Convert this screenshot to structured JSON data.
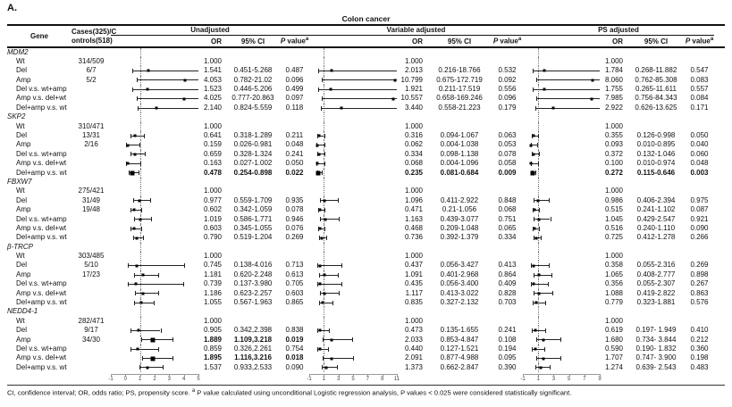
{
  "figure_label": "A.",
  "header": {
    "title": "Colon cancer",
    "gene": "Gene",
    "cases_line1": "Cases(325)/C",
    "cases_line2": "ontrols(518)",
    "or": "OR",
    "ci": "95% CI",
    "p_italic": "P",
    "p_rest": " value",
    "p_sup": "a"
  },
  "footnote": {
    "part1": "CI, confidence interval; OR, odds ratio; PS, propensity score. ",
    "sup": "a",
    "part2": " P value calculated using unconditional Logistic regression analysis, P values < 0.025 were considered statistically significant."
  },
  "chart_data": {
    "type": "forest",
    "title": "Colon cancer",
    "reference_value": 1,
    "models": [
      {
        "name": "Unadjusted",
        "axis_min": -1,
        "axis_max": 5,
        "ticks": [
          -1,
          0,
          1,
          2,
          3,
          4,
          5
        ]
      },
      {
        "name": "Variable adjusted",
        "axis_min": -1,
        "axis_max": 11,
        "ticks": [
          -1,
          1,
          3,
          5,
          7,
          9,
          11
        ]
      },
      {
        "name": "PS adjusted",
        "axis_min": -1,
        "axis_max": 9,
        "ticks": [
          -1,
          1,
          3,
          5,
          7,
          9
        ]
      }
    ],
    "genes": [
      {
        "name": "MDM2",
        "rows": [
          {
            "label": "Wt",
            "cases": "314/509",
            "cells": [
              {
                "or": "1.000"
              },
              {
                "or": "1.000"
              },
              {
                "or": "1.000"
              }
            ]
          },
          {
            "label": "Del",
            "cases": "6/7",
            "cells": [
              {
                "or": "1.541",
                "ci": "0.451-5.268",
                "p": "0.487"
              },
              {
                "or": "2.013",
                "ci": "0.216-18.766",
                "p": "0.532"
              },
              {
                "or": "1.784",
                "ci": "0.268-11.882",
                "p": "0.547"
              }
            ]
          },
          {
            "label": "Amp",
            "cases": "5/2",
            "cells": [
              {
                "or": "4.053",
                "ci": "0.782-21.02",
                "p": "0.096"
              },
              {
                "or": "10.799",
                "ci": "0.675-172.719",
                "p": "0.092"
              },
              {
                "or": "8.060",
                "ci": "0.762-85.308",
                "p": "0.083"
              }
            ]
          },
          {
            "label": "Del v.s. wt+amp",
            "cells": [
              {
                "or": "1.523",
                "ci": "0.446-5.206",
                "p": "0.499"
              },
              {
                "or": "1.921",
                "ci": "0.211-17.519",
                "p": "0.556"
              },
              {
                "or": "1.755",
                "ci": "0.265-11.611",
                "p": "0.557"
              }
            ]
          },
          {
            "label": "Amp v.s. del+wt",
            "cells": [
              {
                "or": "4.025",
                "ci": "0.777-20.863",
                "p": "0.097"
              },
              {
                "or": "10.557",
                "ci": "0.658-169.246",
                "p": "0.096"
              },
              {
                "or": "7.985",
                "ci": "0.756-84.343",
                "p": "0.084"
              }
            ]
          },
          {
            "label": "Del+amp v.s. wt",
            "cells": [
              {
                "or": "2.140",
                "ci": "0.824-5.559",
                "p": "0.118"
              },
              {
                "or": "3.440",
                "ci": "0.558-21.223",
                "p": "0.179"
              },
              {
                "or": "2.922",
                "ci": "0.626-13.625",
                "p": "0.171"
              }
            ]
          }
        ]
      },
      {
        "name": "SKP2",
        "rows": [
          {
            "label": "Wt",
            "cases": "310/471",
            "cells": [
              {
                "or": "1.000"
              },
              {
                "or": "1.000"
              },
              {
                "or": "1.000"
              }
            ]
          },
          {
            "label": "Del",
            "cases": "13/31",
            "cells": [
              {
                "or": "0.641",
                "ci": "0.318-1.289",
                "p": "0.211"
              },
              {
                "or": "0.316",
                "ci": "0.094-1.067",
                "p": "0.063"
              },
              {
                "or": "0.355",
                "ci": "0.126-0.998",
                "p": "0.050"
              }
            ]
          },
          {
            "label": "Amp",
            "cases": "2/16",
            "cells": [
              {
                "or": "0.159",
                "ci": "0.026-0.981",
                "p": "0.048"
              },
              {
                "or": "0.062",
                "ci": "0.004-1.038",
                "p": "0.053"
              },
              {
                "or": "0.093",
                "ci": "0.010-0.895",
                "p": "0.040"
              }
            ]
          },
          {
            "label": "Del v.s. wt+amp",
            "cells": [
              {
                "or": "0.659",
                "ci": "0.328-1.324",
                "p": "0.241"
              },
              {
                "or": "0.334",
                "ci": "0.098-1.138",
                "p": "0.078"
              },
              {
                "or": "0.372",
                "ci": "0.132-1.046",
                "p": "0.060"
              }
            ]
          },
          {
            "label": "Amp v.s. del+wt",
            "cells": [
              {
                "or": "0.163",
                "ci": "0.027-1.002",
                "p": "0.050"
              },
              {
                "or": "0.068",
                "ci": "0.004-1.096",
                "p": "0.058"
              },
              {
                "or": "0.100",
                "ci": "0.010-0.974",
                "p": "0.048"
              }
            ]
          },
          {
            "label": "Del+amp v.s. wt",
            "cells": [
              {
                "or": "0.478",
                "ci": "0.254-0.898",
                "p": "0.022",
                "bold": true
              },
              {
                "or": "0.235",
                "ci": "0.081-0.684",
                "p": "0.009",
                "bold": true
              },
              {
                "or": "0.272",
                "ci": "0.115-0.646",
                "p": "0.003",
                "bold": true
              }
            ]
          }
        ]
      },
      {
        "name": "FBXW7",
        "rows": [
          {
            "label": "Wt",
            "cases": "275/421",
            "cells": [
              {
                "or": "1.000"
              },
              {
                "or": "1.000"
              },
              {
                "or": "1.000"
              }
            ]
          },
          {
            "label": "Del",
            "cases": "31/49",
            "cells": [
              {
                "or": "0.977",
                "ci": "0.559-1.709",
                "p": "0.935"
              },
              {
                "or": "1.096",
                "ci": "0.411-2.922",
                "p": "0.848"
              },
              {
                "or": "0.986",
                "ci": "0.406-2.394",
                "p": "0.975"
              }
            ]
          },
          {
            "label": "Amp",
            "cases": "19/48",
            "cells": [
              {
                "or": "0.602",
                "ci": "0.342-1.059",
                "p": "0.078"
              },
              {
                "or": "0.471",
                "ci": "0.21-1.056",
                "p": "0.068"
              },
              {
                "or": "0.515",
                "ci": "0.241-1.102",
                "p": "0.087"
              }
            ]
          },
          {
            "label": "Del v.s. wt+amp",
            "cells": [
              {
                "or": "1.019",
                "ci": "0.586-1.771",
                "p": "0.946"
              },
              {
                "or": "1.163",
                "ci": "0.439-3.077",
                "p": "0.751"
              },
              {
                "or": "1.045",
                "ci": "0.429-2.547",
                "p": "0.921"
              }
            ]
          },
          {
            "label": "Amp v.s. del+wt",
            "cells": [
              {
                "or": "0.603",
                "ci": "0.345-1.055",
                "p": "0.076"
              },
              {
                "or": "0.468",
                "ci": "0.209-1.048",
                "p": "0.065"
              },
              {
                "or": "0.516",
                "ci": "0.240-1.110",
                "p": "0.090"
              }
            ]
          },
          {
            "label": "Del+amp v.s. wt",
            "cells": [
              {
                "or": "0.790",
                "ci": "0.519-1.204",
                "p": "0.269"
              },
              {
                "or": "0.736",
                "ci": "0.392-1.379",
                "p": "0.334"
              },
              {
                "or": "0.725",
                "ci": "0.412-1.278",
                "p": "0.266"
              }
            ]
          }
        ]
      },
      {
        "name": "β-TRCP",
        "rows": [
          {
            "label": "Wt",
            "cases": "303/485",
            "cells": [
              {
                "or": "1.000"
              },
              {
                "or": "1.000"
              },
              {
                "or": "1.000"
              }
            ]
          },
          {
            "label": "Del",
            "cases": "5/10",
            "cells": [
              {
                "or": "0.745",
                "ci": "0.138-4.016",
                "p": "0.713"
              },
              {
                "or": "0.437",
                "ci": "0.056-3.427",
                "p": "0.413"
              },
              {
                "or": "0.358",
                "ci": "0.055-2.316",
                "p": "0.269"
              }
            ]
          },
          {
            "label": "Amp",
            "cases": "17/23",
            "cells": [
              {
                "or": "1.181",
                "ci": "0.620-2.248",
                "p": "0.613"
              },
              {
                "or": "1.091",
                "ci": "0.401-2.968",
                "p": "0.864"
              },
              {
                "or": "1.065",
                "ci": "0.408-2.777",
                "p": "0.898"
              }
            ]
          },
          {
            "label": "Del v.s. wt+amp",
            "cells": [
              {
                "or": "0.739",
                "ci": "0.137-3.980",
                "p": "0.705"
              },
              {
                "or": "0.435",
                "ci": "0.056-3.400",
                "p": "0.409"
              },
              {
                "or": "0.356",
                "ci": "0.055-2.307",
                "p": "0.267"
              }
            ]
          },
          {
            "label": "Amp v.s. del+wt",
            "cells": [
              {
                "or": "1.186",
                "ci": "0.623-2.257",
                "p": "0.603"
              },
              {
                "or": "1.117",
                "ci": "0.413-3.022",
                "p": "0.828"
              },
              {
                "or": "1.088",
                "ci": "0.419-2.822",
                "p": "0.863"
              }
            ]
          },
          {
            "label": "Del+amp v.s. wt",
            "cells": [
              {
                "or": "1.055",
                "ci": "0.567-1.963",
                "p": "0.865"
              },
              {
                "or": "0.835",
                "ci": "0.327-2.132",
                "p": "0.703"
              },
              {
                "or": "0.779",
                "ci": "0.323-1.881",
                "p": "0.576"
              }
            ]
          }
        ]
      },
      {
        "name": "NEDD4-1",
        "rows": [
          {
            "label": "Wt",
            "cases": "282/471",
            "cells": [
              {
                "or": "1.000"
              },
              {
                "or": "1.000"
              },
              {
                "or": "1.000"
              }
            ]
          },
          {
            "label": "Del",
            "cases": "9/17",
            "cells": [
              {
                "or": "0.905",
                "ci": "0.342,2.398",
                "p": "0.838"
              },
              {
                "or": "0.473",
                "ci": "0.135-1.655",
                "p": "0.241"
              },
              {
                "or": "0.619",
                "ci": "0.197- 1.949",
                "p": "0.410"
              }
            ]
          },
          {
            "label": "Amp",
            "cases": "34/30",
            "cells": [
              {
                "or": "1.889",
                "ci": "1.109,3.218",
                "p": "0.019",
                "bold": true
              },
              {
                "or": "2.033",
                "ci": "0.853-4.847",
                "p": "0.108"
              },
              {
                "or": "1.680",
                "ci": "0.734- 3.844",
                "p": "0.212"
              }
            ]
          },
          {
            "label": "Del v.s. wt+amp",
            "cells": [
              {
                "or": "0.859",
                "ci": "0.326,2.261",
                "p": "0.754"
              },
              {
                "or": "0.440",
                "ci": "0.127-1.521",
                "p": "0.194"
              },
              {
                "or": "0.590",
                "ci": "0.190- 1.832",
                "p": "0.360"
              }
            ]
          },
          {
            "label": "Amp v.s. del+wt",
            "cells": [
              {
                "or": "1.895",
                "ci": "1.116,3.216",
                "p": "0.018",
                "bold": true
              },
              {
                "or": "2.091",
                "ci": "0.877-4.988",
                "p": "0.095"
              },
              {
                "or": "1.707",
                "ci": "0.747- 3.900",
                "p": "0.198"
              }
            ]
          },
          {
            "label": "Del+amp v.s. wt",
            "cells": [
              {
                "or": "1.537",
                "ci": "0.933,2.533",
                "p": "0.090"
              },
              {
                "or": "1.373",
                "ci": "0.662-2.847",
                "p": "0.390"
              },
              {
                "or": "1.274",
                "ci": "0.639- 2.543",
                "p": "0.483"
              }
            ]
          }
        ]
      }
    ]
  }
}
